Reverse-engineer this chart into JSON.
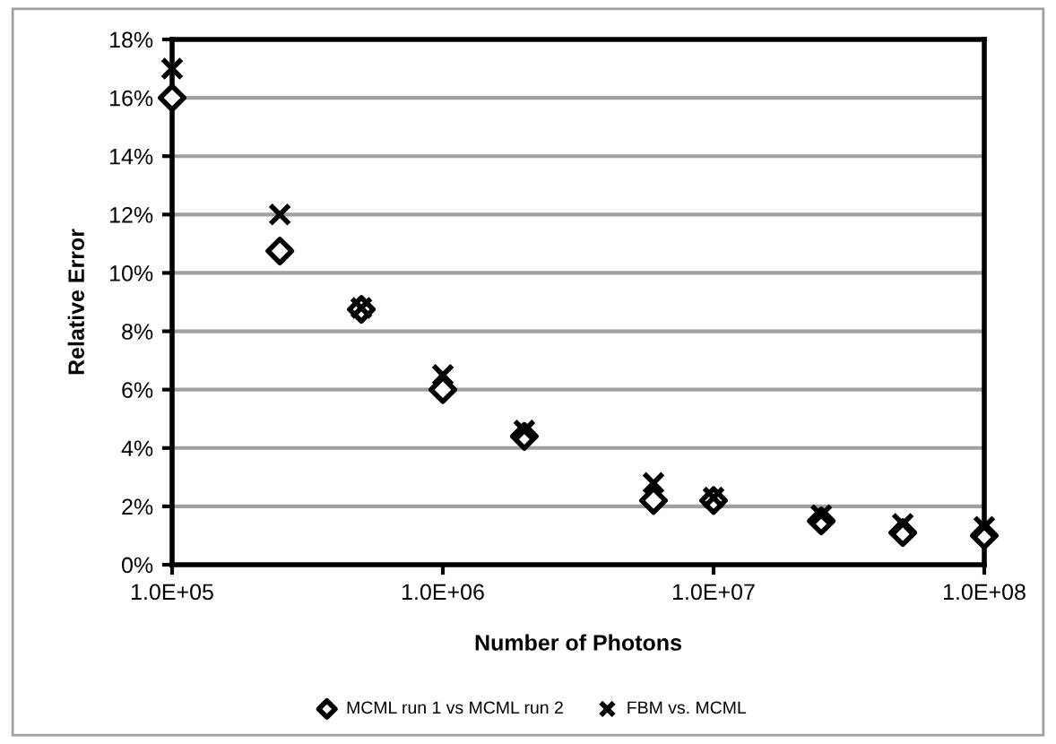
{
  "chart_data": {
    "type": "scatter",
    "xlabel": "Number of Photons",
    "ylabel": "Relative Error",
    "log": "x",
    "x": [
      100000,
      250000,
      500000,
      1000000,
      2000000,
      6000000,
      10000000,
      25000000,
      50000000,
      100000000
    ],
    "series": [
      {
        "name": "MCML run 1 vs MCML run 2",
        "color": "#000000",
        "marker": "diamond",
        "values": [
          16.0,
          10.75,
          8.75,
          6.0,
          4.4,
          2.2,
          2.2,
          1.5,
          1.1,
          1.0
        ]
      },
      {
        "name": "FBM vs. MCML",
        "color": "#000000",
        "marker": "cross",
        "values": [
          17.0,
          12.0,
          8.8,
          6.5,
          4.6,
          2.8,
          2.3,
          1.7,
          1.4,
          1.3
        ]
      }
    ],
    "xlim": [
      100000,
      100000000
    ],
    "xticks": [
      {
        "value": 100000,
        "label": "1.0E+05"
      },
      {
        "value": 1000000,
        "label": "1.0E+06"
      },
      {
        "value": 10000000,
        "label": "1.0E+07"
      },
      {
        "value": 100000000,
        "label": "1.0E+08"
      }
    ],
    "ylim": [
      0,
      18
    ],
    "yticks": [
      {
        "value": 0,
        "label": "0%"
      },
      {
        "value": 2,
        "label": "2%"
      },
      {
        "value": 4,
        "label": "4%"
      },
      {
        "value": 6,
        "label": "6%"
      },
      {
        "value": 8,
        "label": "8%"
      },
      {
        "value": 10,
        "label": "10%"
      },
      {
        "value": 12,
        "label": "12%"
      },
      {
        "value": 14,
        "label": "14%"
      },
      {
        "value": 16,
        "label": "16%"
      },
      {
        "value": 18,
        "label": "18%"
      }
    ],
    "grid": "y",
    "legend": "bottom"
  }
}
